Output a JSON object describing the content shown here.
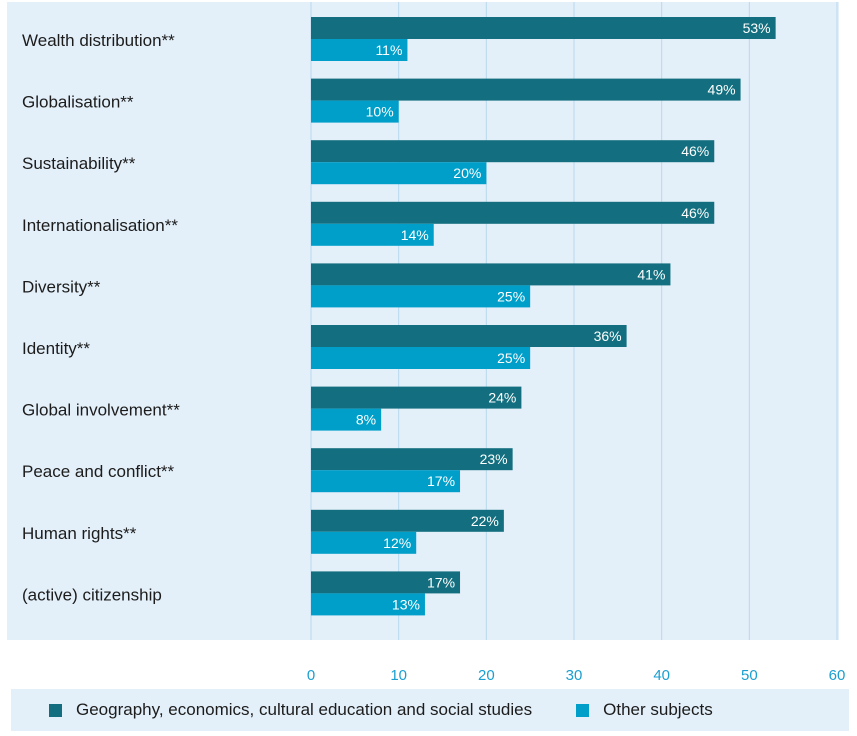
{
  "chart_data": {
    "type": "bar",
    "orientation": "horizontal",
    "categories": [
      "Wealth distribution**",
      "Globalisation**",
      "Sustainability**",
      "Internationalisation**",
      "Diversity**",
      "Identity**",
      "Global involvement**",
      "Peace and conflict**",
      "Human rights**",
      "(active) citizenship"
    ],
    "series": [
      {
        "name": "Geography, economics, cultural education and social studies",
        "color": "#136f7f",
        "values": [
          53,
          49,
          46,
          46,
          41,
          36,
          24,
          23,
          22,
          17
        ],
        "labels": [
          "53%",
          "49%",
          "46%",
          "46%",
          "41%",
          "36%",
          "24%",
          "23%",
          "22%",
          "17%"
        ]
      },
      {
        "name": "Other subjects",
        "color": "#009fca",
        "values": [
          11,
          10,
          20,
          14,
          25,
          25,
          8,
          17,
          12,
          13
        ],
        "labels": [
          "11%",
          "10%",
          "20%",
          "14%",
          "25%",
          "25%",
          "8%",
          "17%",
          "12%",
          "13%"
        ]
      }
    ],
    "xlim": [
      0,
      60
    ],
    "xticks": [
      "0",
      "10",
      "20",
      "30",
      "40",
      "50",
      "60"
    ],
    "grid": "vertical",
    "legend_position": "bottom"
  }
}
